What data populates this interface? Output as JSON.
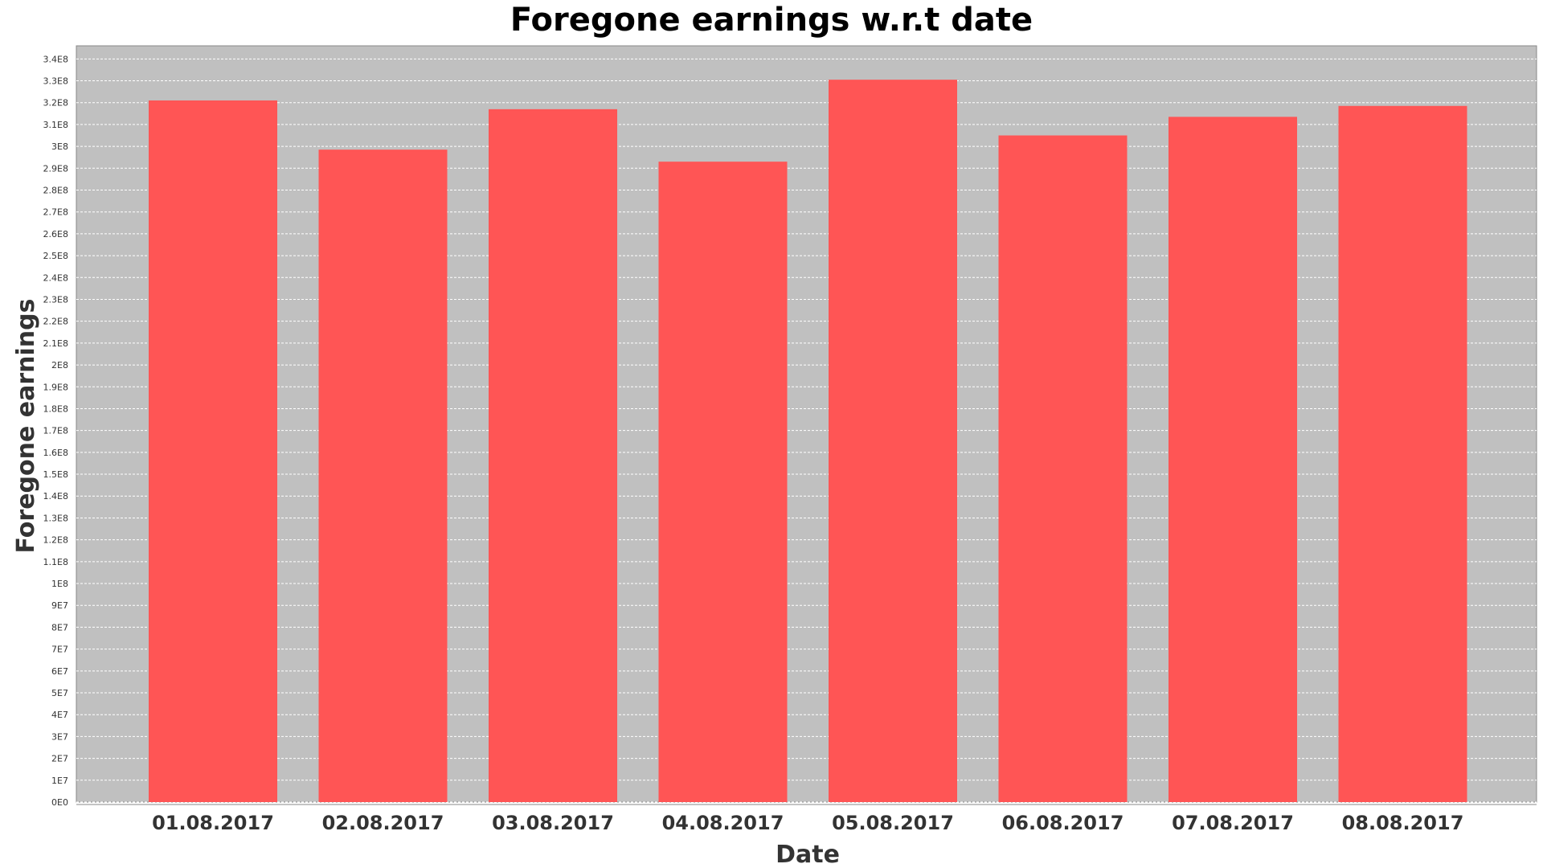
{
  "chart_data": {
    "type": "bar",
    "title": "Foregone earnings w.r.t date",
    "xlabel": "Date",
    "ylabel": "Foregone earnings",
    "categories": [
      "01.08.2017",
      "02.08.2017",
      "03.08.2017",
      "04.08.2017",
      "05.08.2017",
      "06.08.2017",
      "07.08.2017",
      "08.08.2017"
    ],
    "values": [
      321000000,
      298500000,
      317000000,
      293000000,
      330500000,
      305000000,
      313500000,
      318500000
    ],
    "ylim": [
      0,
      346000000
    ],
    "yticks": [
      "0E0",
      "1E7",
      "2E7",
      "3E7",
      "4E7",
      "5E7",
      "6E7",
      "7E7",
      "8E7",
      "9E7",
      "1E8",
      "1.1E8",
      "1.2E8",
      "1.3E8",
      "1.4E8",
      "1.5E8",
      "1.6E8",
      "1.7E8",
      "1.8E8",
      "1.9E8",
      "2E8",
      "2.1E8",
      "2.2E8",
      "2.3E8",
      "2.4E8",
      "2.5E8",
      "2.6E8",
      "2.7E8",
      "2.8E8",
      "2.9E8",
      "3E8",
      "3.1E8",
      "3.2E8",
      "3.3E8",
      "3.4E8"
    ],
    "ytick_step": 10000000,
    "grid": true,
    "legend": "none",
    "colors": {
      "bar": "#ff5555",
      "plot_background": "#c0c0c0",
      "gridline": "#ffffff"
    }
  }
}
